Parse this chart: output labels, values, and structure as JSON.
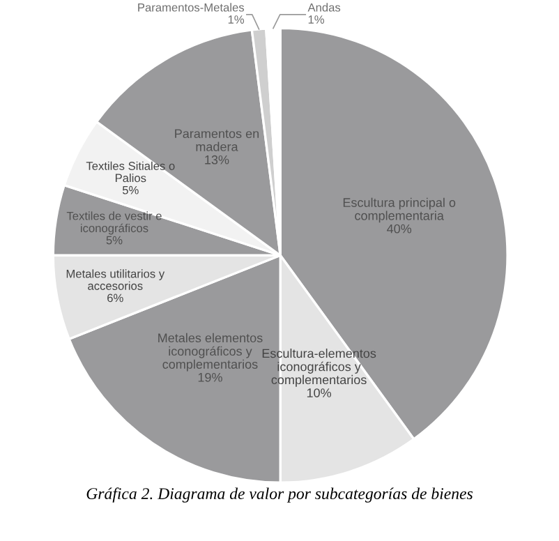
{
  "chart_data": {
    "type": "pie",
    "title": "Gráfica 2. Diagrama de valor por subcategorías de bienes",
    "categories": [
      "Escultura principal o\ncomplementaria",
      "Escultura-elementos\niconográficos y\ncomplementarios",
      "Metales elementos\niconográficos y\ncomplementarios",
      "Metales utilitarios y\naccesorios",
      "Textiles de vestir e\niconográficos",
      "Textiles Sitiales o\nPalios",
      "Paramentos en\nmadera",
      "Paramentos-Metales",
      "Andas"
    ],
    "values": [
      40,
      10,
      19,
      6,
      5,
      5,
      13,
      1,
      1
    ],
    "colors": [
      "#9a9a9c",
      "#e4e4e4",
      "#9a9a9c",
      "#e4e4e4",
      "#9a9a9c",
      "#f2f2f2",
      "#9a9a9c",
      "#cfcfcf",
      "#ffffff"
    ],
    "value_labels": [
      "40%",
      "10%",
      "19%",
      "6%",
      "5%",
      "5%",
      "13%",
      "1%",
      "1%"
    ]
  }
}
